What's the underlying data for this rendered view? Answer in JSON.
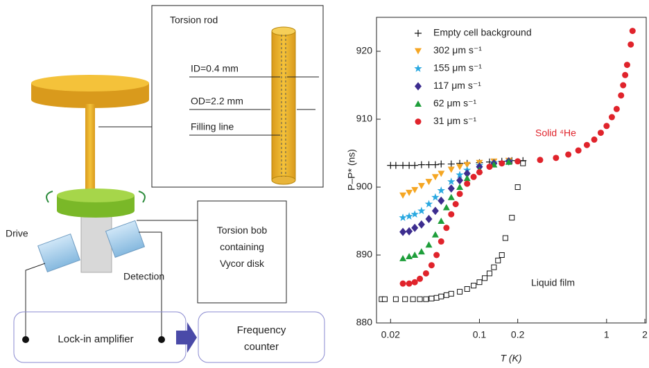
{
  "diagram": {
    "torsion_rod": "Torsion rod",
    "id": "ID=0.4 mm",
    "od": "OD=2.2 mm",
    "filling_line": "Filling line",
    "torsion_bob": [
      "Torsion bob",
      "containing",
      "Vycor disk"
    ],
    "drive": "Drive",
    "detection": "Detection",
    "lock_in": "Lock-in amplifier",
    "frequency_counter": [
      "Frequency",
      "counter"
    ]
  },
  "chart_data": {
    "type": "scatter",
    "xlabel": "T (K)",
    "ylabel": "P–P* (ns)",
    "xscale": "log",
    "xlim": [
      0.0155,
      2.05
    ],
    "ylim": [
      880,
      925
    ],
    "xticks": [
      0.02,
      0.1,
      0.2,
      1,
      2
    ],
    "yticks": [
      880,
      890,
      900,
      910,
      920
    ],
    "legend": "upper left",
    "annotations": [
      "Solid ⁴He",
      "Liquid film"
    ],
    "series": [
      {
        "name": "Empty cell background",
        "color": "#111111",
        "marker": "plus",
        "x": [
          0.02,
          0.022,
          0.025,
          0.028,
          0.031,
          0.035,
          0.04,
          0.045,
          0.05,
          0.06,
          0.07,
          0.08,
          0.1,
          0.12,
          0.15,
          0.18,
          0.22
        ],
        "values": [
          903.2,
          903.2,
          903.2,
          903.2,
          903.2,
          903.3,
          903.3,
          903.3,
          903.4,
          903.4,
          903.5,
          903.5,
          903.6,
          903.7,
          903.8,
          903.9,
          903.9
        ]
      },
      {
        "name": "302 μm s⁻¹",
        "color": "#f5a623",
        "marker": "triangle-down",
        "x": [
          0.025,
          0.028,
          0.031,
          0.035,
          0.04,
          0.045,
          0.05,
          0.06,
          0.07,
          0.08,
          0.1,
          0.13,
          0.17
        ],
        "values": [
          898.8,
          899.2,
          899.6,
          900.2,
          900.8,
          901.5,
          902.0,
          902.6,
          903.0,
          903.3,
          903.6,
          903.8,
          903.9
        ]
      },
      {
        "name": "155 μm s⁻¹",
        "color": "#29a8e0",
        "marker": "star",
        "x": [
          0.025,
          0.028,
          0.031,
          0.035,
          0.04,
          0.045,
          0.05,
          0.06,
          0.07,
          0.08,
          0.1,
          0.13,
          0.17
        ],
        "values": [
          895.5,
          895.7,
          896.0,
          896.5,
          897.5,
          898.5,
          899.5,
          900.8,
          901.8,
          902.5,
          903.2,
          903.6,
          903.8
        ]
      },
      {
        "name": "117 μm s⁻¹",
        "color": "#3d2d8f",
        "marker": "diamond",
        "x": [
          0.025,
          0.028,
          0.031,
          0.035,
          0.04,
          0.045,
          0.05,
          0.06,
          0.07,
          0.08,
          0.1,
          0.13,
          0.17
        ],
        "values": [
          893.4,
          893.5,
          894.0,
          894.5,
          895.3,
          896.5,
          898.0,
          899.8,
          901.0,
          902.0,
          903.0,
          903.5,
          903.8
        ]
      },
      {
        "name": "62 μm s⁻¹",
        "color": "#1e9e3a",
        "marker": "triangle-up",
        "x": [
          0.025,
          0.028,
          0.031,
          0.035,
          0.04,
          0.045,
          0.05,
          0.055,
          0.06,
          0.07,
          0.08,
          0.1,
          0.13,
          0.17
        ],
        "values": [
          889.5,
          889.8,
          890.0,
          890.5,
          891.5,
          893.0,
          895.0,
          897.0,
          898.5,
          900.0,
          901.3,
          902.5,
          903.3,
          903.7
        ]
      },
      {
        "name": "31 μm s⁻¹",
        "color": "#e0232b",
        "marker": "circle",
        "x": [
          0.025,
          0.028,
          0.031,
          0.034,
          0.038,
          0.042,
          0.046,
          0.05,
          0.055,
          0.06,
          0.065,
          0.07,
          0.08,
          0.09,
          0.1,
          0.12,
          0.15,
          0.2,
          0.3,
          0.4,
          0.5,
          0.6,
          0.7,
          0.8,
          0.9,
          1.0,
          1.1,
          1.2,
          1.3,
          1.35,
          1.4,
          1.45,
          1.55,
          1.6
        ],
        "values": [
          885.8,
          885.8,
          886.0,
          886.5,
          887.3,
          888.5,
          890.0,
          892.0,
          894.0,
          896.0,
          897.5,
          899.0,
          900.5,
          901.5,
          902.2,
          903.0,
          903.5,
          903.8,
          904.0,
          904.3,
          904.8,
          905.4,
          906.2,
          907.0,
          908.0,
          909.0,
          910.3,
          911.5,
          913.5,
          915.0,
          916.5,
          918.0,
          921.0,
          923.0
        ]
      },
      {
        "color": "#111111",
        "marker": "square-open",
        "x": [
          0.017,
          0.018,
          0.022,
          0.026,
          0.03,
          0.034,
          0.038,
          0.042,
          0.046,
          0.05,
          0.055,
          0.06,
          0.07,
          0.08,
          0.09,
          0.1,
          0.11,
          0.12,
          0.13,
          0.14,
          0.15,
          0.16,
          0.18,
          0.2,
          0.22
        ],
        "values": [
          883.5,
          883.5,
          883.5,
          883.5,
          883.5,
          883.5,
          883.5,
          883.6,
          883.7,
          883.9,
          884.1,
          884.3,
          884.6,
          885.0,
          885.5,
          886.0,
          886.6,
          887.3,
          888.2,
          889.2,
          890.0,
          892.5,
          895.5,
          900.0,
          903.5
        ]
      }
    ]
  }
}
